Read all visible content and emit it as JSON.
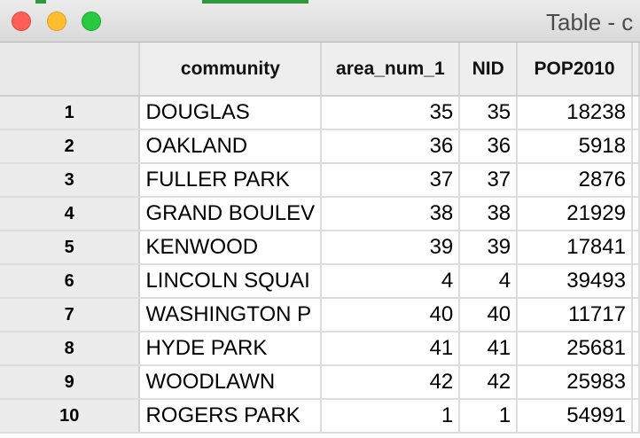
{
  "window": {
    "title": "Table - c"
  },
  "table": {
    "columns": [
      "community",
      "area_num_1",
      "NID",
      "POP2010"
    ],
    "rows": [
      {
        "row": "1",
        "community": "DOUGLAS",
        "area_num_1": "35",
        "NID": "35",
        "POP2010": "18238"
      },
      {
        "row": "2",
        "community": "OAKLAND",
        "area_num_1": "36",
        "NID": "36",
        "POP2010": "5918"
      },
      {
        "row": "3",
        "community": "FULLER PARK",
        "area_num_1": "37",
        "NID": "37",
        "POP2010": "2876"
      },
      {
        "row": "4",
        "community": "GRAND BOULEV",
        "area_num_1": "38",
        "NID": "38",
        "POP2010": "21929"
      },
      {
        "row": "5",
        "community": "KENWOOD",
        "area_num_1": "39",
        "NID": "39",
        "POP2010": "17841"
      },
      {
        "row": "6",
        "community": "LINCOLN SQUAI",
        "area_num_1": "4",
        "NID": "4",
        "POP2010": "39493"
      },
      {
        "row": "7",
        "community": "WASHINGTON P",
        "area_num_1": "40",
        "NID": "40",
        "POP2010": "11717"
      },
      {
        "row": "8",
        "community": "HYDE PARK",
        "area_num_1": "41",
        "NID": "41",
        "POP2010": "25681"
      },
      {
        "row": "9",
        "community": "WOODLAWN",
        "area_num_1": "42",
        "NID": "42",
        "POP2010": "25983"
      },
      {
        "row": "10",
        "community": "ROGERS PARK",
        "area_num_1": "1",
        "NID": "1",
        "POP2010": "54991"
      }
    ]
  }
}
